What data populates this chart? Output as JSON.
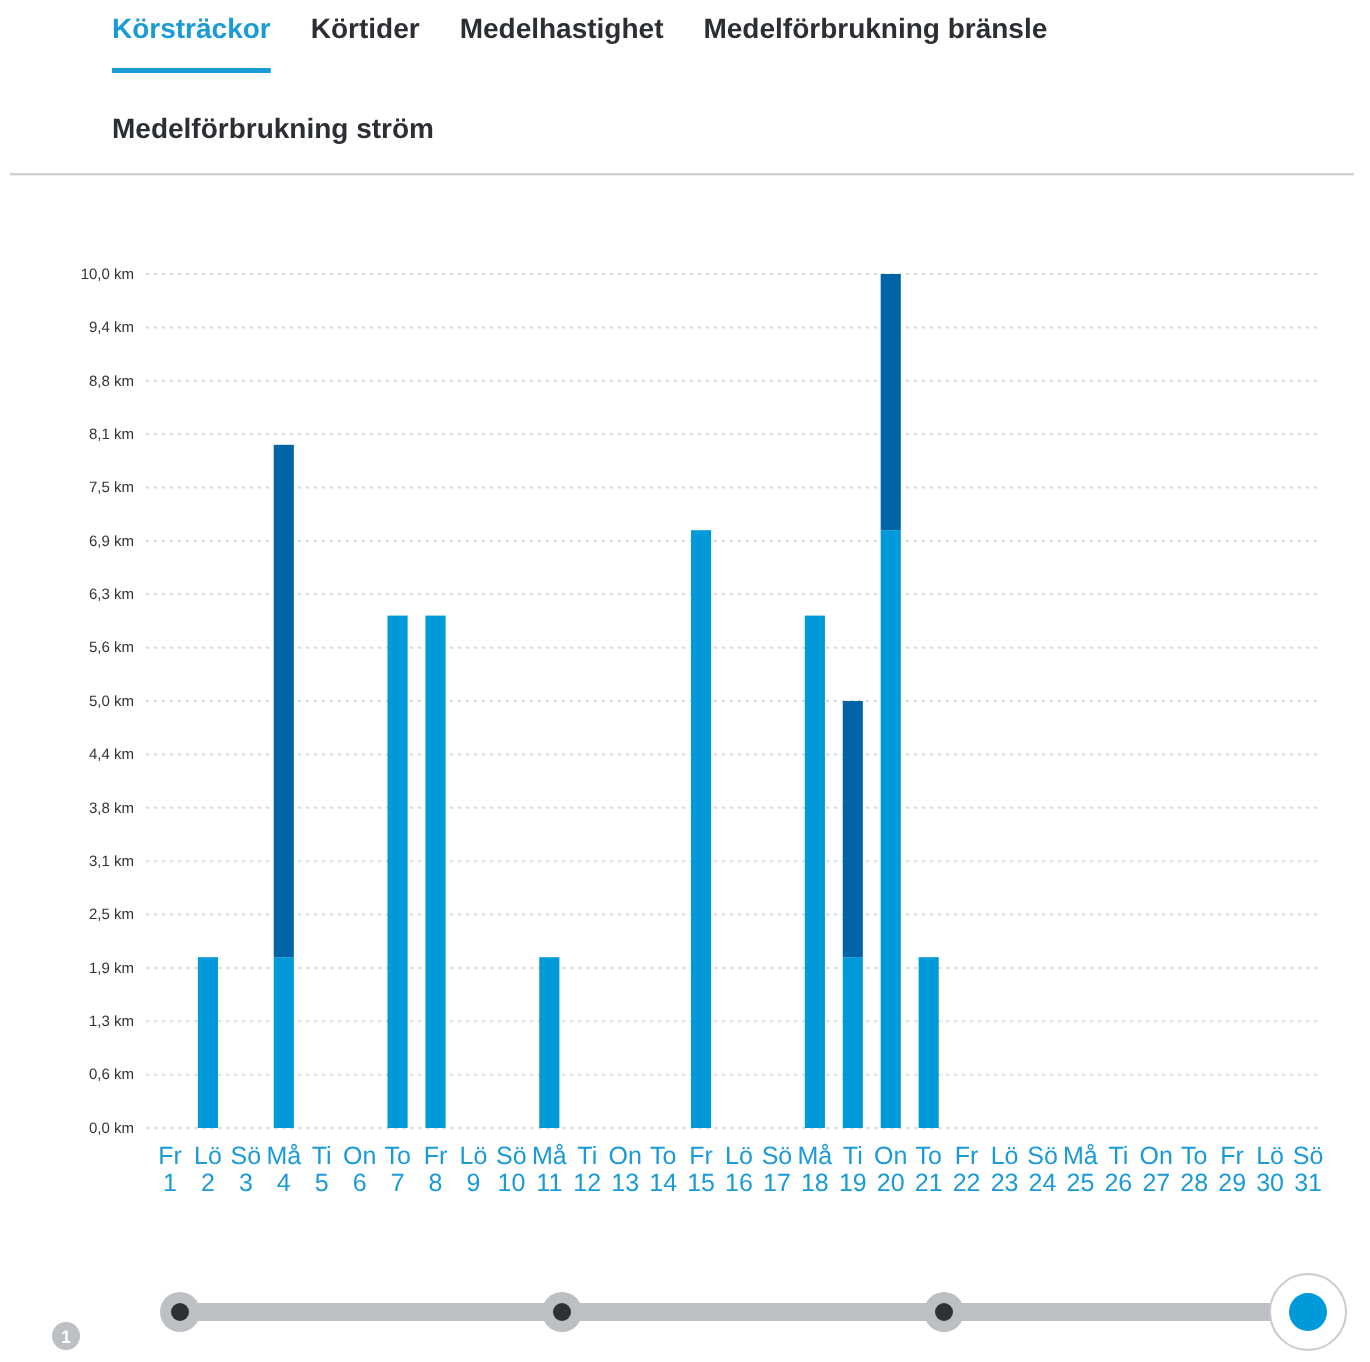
{
  "chart_data": {
    "type": "bar",
    "title": "Körsträckor",
    "annotations": [
      "Körtider",
      "Medelhastighet",
      "Medelförbrukning bränsle",
      "Medelförbrukning ström",
      "1"
    ],
    "categories": [
      "Fr 1",
      "Lö 2",
      "Sö 3",
      "Må 4",
      "Ti 5",
      "On 6",
      "To 7",
      "Fr 8",
      "Lö 9",
      "Sö 10",
      "Må 11",
      "Ti 12",
      "On 13",
      "To 14",
      "Fr 15",
      "Lö 16",
      "Sö 17",
      "Må 18",
      "Ti 19",
      "On 20",
      "To 21",
      "Fr 22",
      "Lö 23",
      "Sö 24",
      "Må 25",
      "Ti 26",
      "On 27",
      "To 28",
      "Fr 29",
      "Lö 30",
      "Sö 31"
    ],
    "stacked": true,
    "series": [
      {
        "color": "#0099da",
        "values": [
          null,
          2,
          null,
          2,
          null,
          null,
          6,
          6,
          null,
          null,
          2,
          null,
          null,
          null,
          7,
          null,
          null,
          6,
          2,
          7,
          2,
          null,
          null,
          null,
          null,
          null,
          null,
          null,
          null,
          null,
          null
        ]
      },
      {
        "color": "#0064a6",
        "values": [
          null,
          null,
          null,
          6,
          null,
          null,
          null,
          null,
          null,
          null,
          null,
          null,
          null,
          null,
          null,
          null,
          null,
          null,
          3,
          3,
          null,
          null,
          null,
          null,
          null,
          null,
          null,
          null,
          null,
          null,
          null
        ]
      }
    ],
    "ylim": [
      0,
      10
    ],
    "yticks": [
      {
        "value": 0,
        "label": "0,0 km"
      },
      {
        "value": 0.625,
        "label": "0,6 km"
      },
      {
        "value": 1.25,
        "label": "1,3 km"
      },
      {
        "value": 1.875,
        "label": "1,9 km"
      },
      {
        "value": 2.5,
        "label": "2,5 km"
      },
      {
        "value": 3.125,
        "label": "3,1 km"
      },
      {
        "value": 3.75,
        "label": "3,8 km"
      },
      {
        "value": 4.375,
        "label": "4,4 km"
      },
      {
        "value": 5,
        "label": "5,0 km"
      },
      {
        "value": 5.625,
        "label": "5,6 km"
      },
      {
        "value": 6.25,
        "label": "6,3 km"
      },
      {
        "value": 6.875,
        "label": "6,9 km"
      },
      {
        "value": 7.5,
        "label": "7,5 km"
      },
      {
        "value": 8.125,
        "label": "8,1 km"
      },
      {
        "value": 8.75,
        "label": "8,8 km"
      },
      {
        "value": 9.375,
        "label": "9,4 km"
      },
      {
        "value": 10,
        "label": "10,0 km"
      }
    ],
    "grid": "y"
  }
}
